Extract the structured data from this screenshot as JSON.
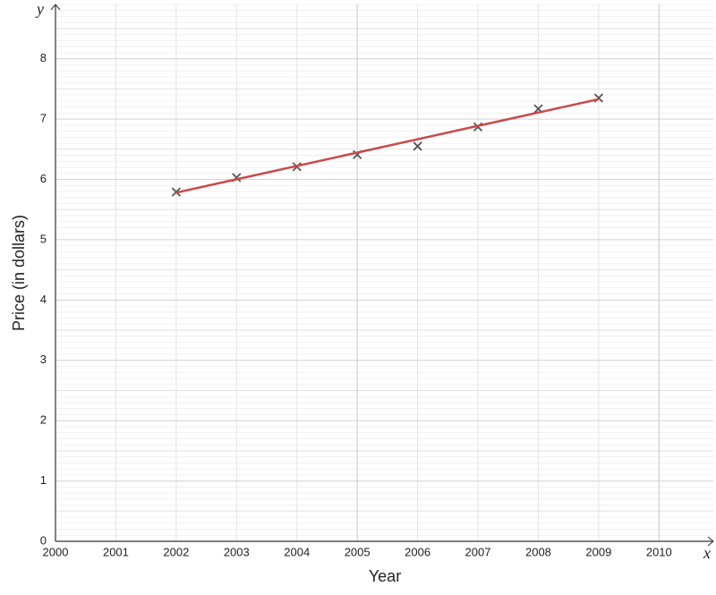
{
  "chart_data": {
    "type": "scatter",
    "x_label": "Year",
    "y_label": "Price (in dollars)",
    "x_axis_symbol": "x",
    "y_axis_symbol": "y",
    "xlim": [
      2000,
      2010.9
    ],
    "ylim": [
      0,
      8.9
    ],
    "xticks": [
      2000,
      2001,
      2002,
      2003,
      2004,
      2005,
      2006,
      2007,
      2008,
      2009,
      2010
    ],
    "yticks": [
      0,
      1,
      2,
      3,
      4,
      5,
      6,
      7,
      8
    ],
    "grid": true,
    "series": [
      {
        "marker": "x",
        "color": "#555555",
        "x": [
          2002,
          2003,
          2004,
          2005,
          2006,
          2007,
          2008,
          2009
        ],
        "values": [
          5.79,
          6.03,
          6.21,
          6.41,
          6.55,
          6.87,
          7.17,
          7.35
        ]
      },
      {
        "marker": "line",
        "color": "#c94a4a",
        "x": [
          2002,
          2009
        ],
        "values": [
          5.78,
          7.33
        ]
      }
    ]
  }
}
